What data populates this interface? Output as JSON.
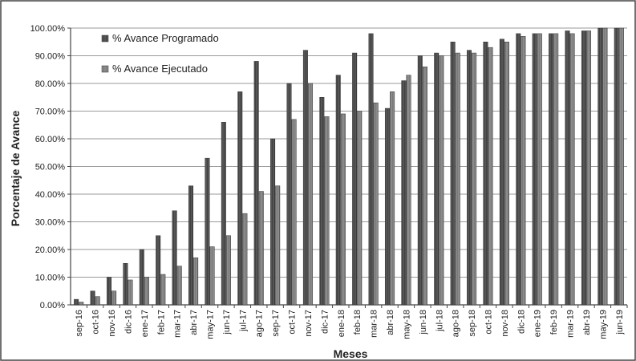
{
  "chart_data": {
    "type": "bar",
    "title": "",
    "xlabel": "Meses",
    "ylabel": "Porcentaje de Avance",
    "ylim": [
      0,
      100
    ],
    "y_ticks": [
      "0.00%",
      "10.00%",
      "20.00%",
      "30.00%",
      "40.00%",
      "50.00%",
      "60.00%",
      "70.00%",
      "80.00%",
      "90.00%",
      "100.00%"
    ],
    "grid": true,
    "legend_position": "top-left",
    "categories": [
      "sep-16",
      "oct-16",
      "nov-16",
      "dic-16",
      "ene-17",
      "feb-17",
      "mar-17",
      "abr-17",
      "may-17",
      "jun-17",
      "jul-17",
      "ago-17",
      "sep-17",
      "oct-17",
      "nov-17",
      "dic-17",
      "ene-18",
      "feb-18",
      "mar-18",
      "abr-18",
      "may-18",
      "jun-18",
      "jul-18",
      "ago-18",
      "sep-18",
      "oct-18",
      "nov-18",
      "dic-18",
      "ene-19",
      "feb-19",
      "mar-19",
      "abr-19",
      "may-19",
      "jun-19"
    ],
    "series": [
      {
        "name": "% Avance Programado",
        "color": "#555555",
        "values": [
          2,
          5,
          10,
          15,
          20,
          25,
          34,
          43,
          53,
          66,
          77,
          88,
          60,
          80,
          92,
          75,
          83,
          91,
          98,
          71,
          81,
          90,
          91,
          95,
          92,
          95,
          96,
          98,
          98,
          98,
          99,
          99,
          100,
          100
        ]
      },
      {
        "name": "% Avance Ejecutado",
        "color": "#8a8a8a",
        "values": [
          1,
          3,
          5,
          9,
          10,
          11,
          14,
          17,
          21,
          25,
          33,
          41,
          43,
          67,
          80,
          68,
          69,
          70,
          73,
          77,
          83,
          86,
          90,
          91,
          91,
          93,
          95,
          97,
          98,
          98,
          98,
          99,
          100,
          100
        ]
      }
    ]
  }
}
